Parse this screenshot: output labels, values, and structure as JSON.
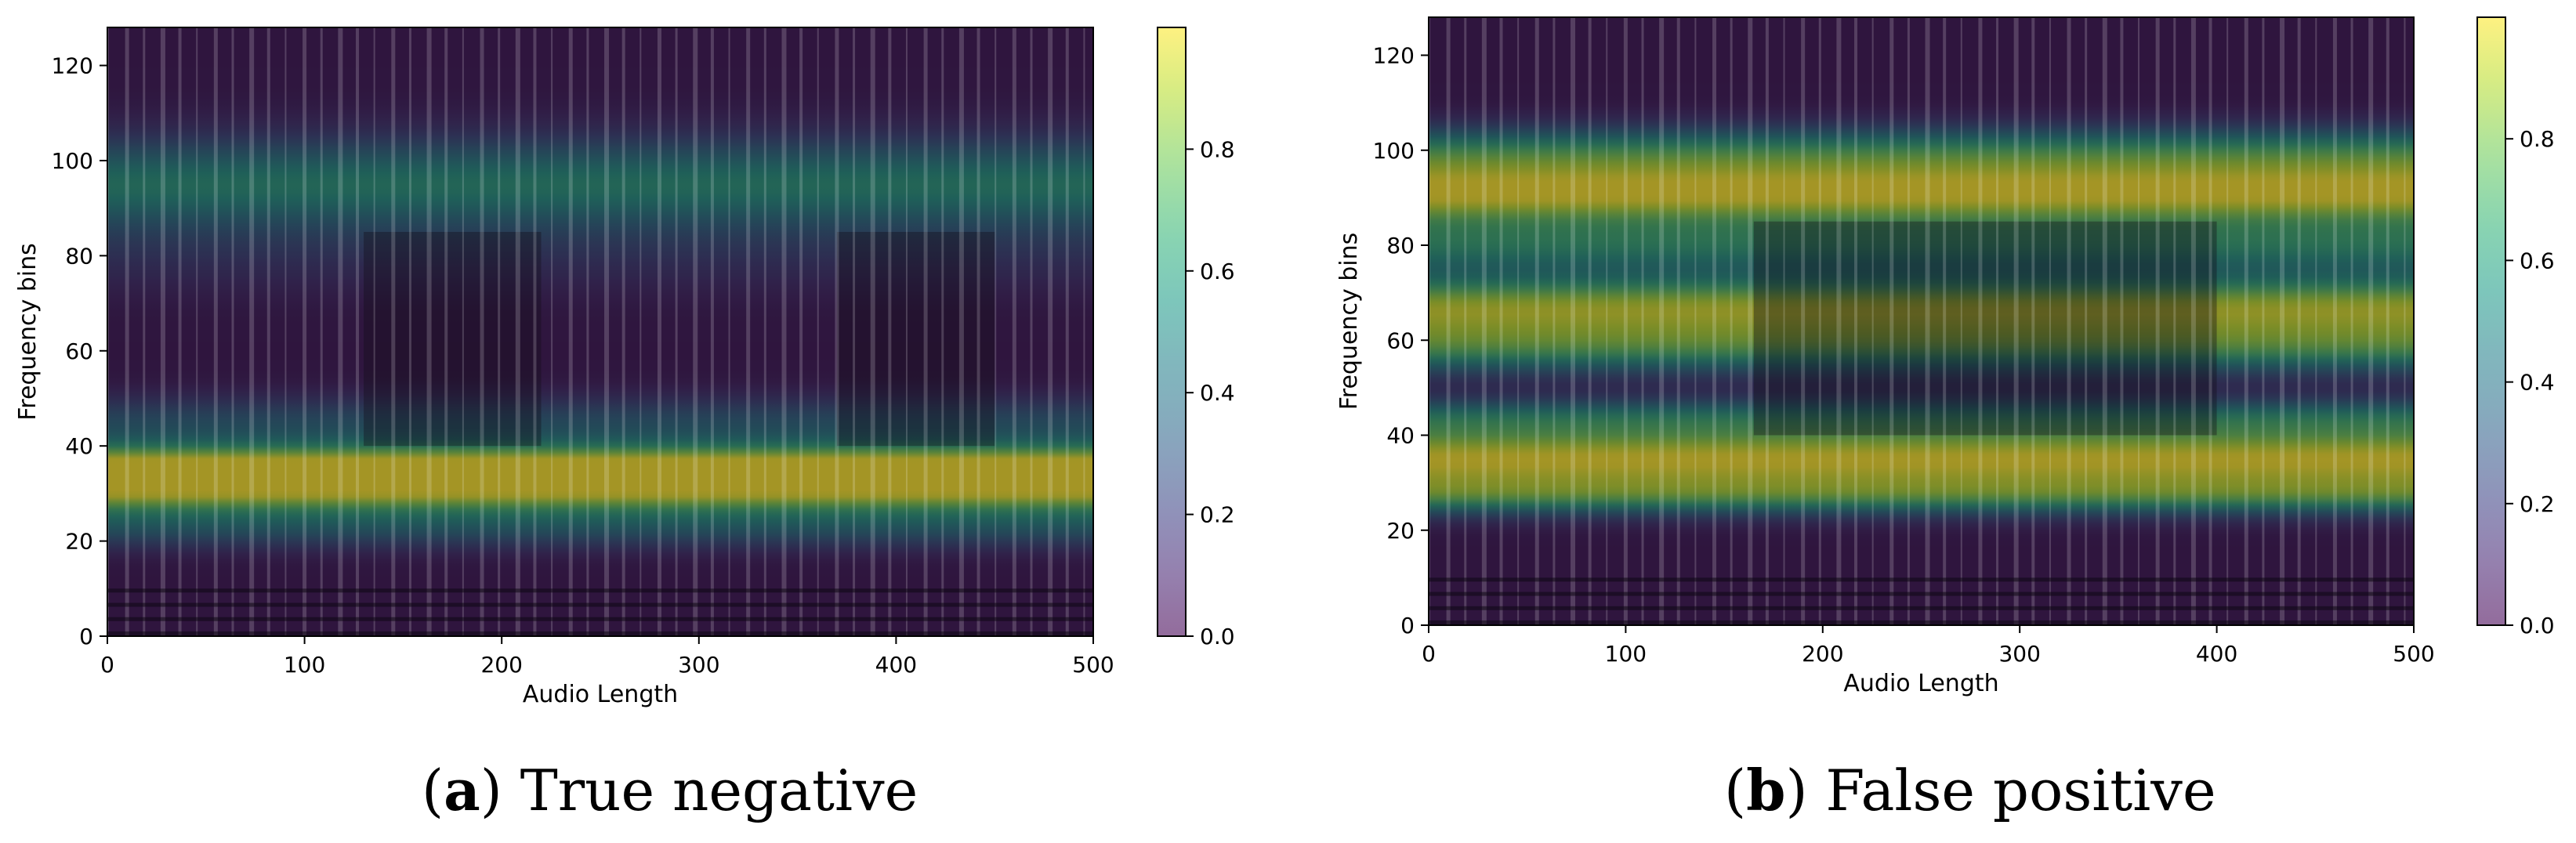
{
  "chart_data": [
    {
      "type": "heatmap",
      "caption": {
        "letter": "a",
        "text": "True negative"
      },
      "xlabel": "Audio Length",
      "ylabel": "Frequency bins",
      "xlim": [
        0,
        500
      ],
      "ylim": [
        0,
        128
      ],
      "xticks": [
        "0",
        "100",
        "200",
        "300",
        "400",
        "500"
      ],
      "yticks": [
        "0",
        "20",
        "40",
        "60",
        "80",
        "100",
        "120"
      ],
      "colorbar": {
        "range": [
          0,
          1
        ],
        "ticks": [
          "0.0",
          "0.2",
          "0.4",
          "0.6",
          "0.8"
        ]
      },
      "activation_bands": [
        {
          "center": 35,
          "width": 4,
          "value": 1.0
        },
        {
          "center": 29,
          "width": 4,
          "value": 0.55
        },
        {
          "center": 95,
          "width": 7,
          "value": 0.55
        },
        {
          "center": 80,
          "width": 6,
          "value": 0.12
        },
        {
          "center": 22,
          "width": 3,
          "value": 0.25
        },
        {
          "center": 45,
          "width": 4,
          "value": 0.3
        }
      ],
      "dark_segments": [
        [
          130,
          220
        ],
        [
          370,
          450
        ]
      ]
    },
    {
      "type": "heatmap",
      "caption": {
        "letter": "b",
        "text": "False positive"
      },
      "xlabel": "Audio Length",
      "ylabel": "Frequency bins",
      "xlim": [
        0,
        500
      ],
      "ylim": [
        0,
        128
      ],
      "xticks": [
        "0",
        "100",
        "200",
        "300",
        "400",
        "500"
      ],
      "yticks": [
        "0",
        "20",
        "40",
        "60",
        "80",
        "100",
        "120"
      ],
      "colorbar": {
        "range": [
          0,
          1
        ],
        "ticks": [
          "0.0",
          "0.2",
          "0.4",
          "0.6",
          "0.8"
        ]
      },
      "activation_bands": [
        {
          "center": 91,
          "width": 5,
          "value": 0.95
        },
        {
          "center": 100,
          "width": 4,
          "value": 0.5
        },
        {
          "center": 80,
          "width": 4,
          "value": 0.5
        },
        {
          "center": 67,
          "width": 5,
          "value": 0.85
        },
        {
          "center": 58,
          "width": 4,
          "value": 0.55
        },
        {
          "center": 35,
          "width": 5,
          "value": 0.95
        },
        {
          "center": 27,
          "width": 3,
          "value": 0.5
        },
        {
          "center": 44,
          "width": 3,
          "value": 0.4
        }
      ],
      "dark_segments": [
        [
          165,
          400
        ]
      ]
    }
  ],
  "colors": {
    "viridis": [
      "#440154",
      "#482878",
      "#3e4989",
      "#31688e",
      "#26828e",
      "#1f9e89",
      "#35b779",
      "#6ece58",
      "#b5de2b",
      "#fde725"
    ],
    "background_dark": "#1e1a24"
  }
}
